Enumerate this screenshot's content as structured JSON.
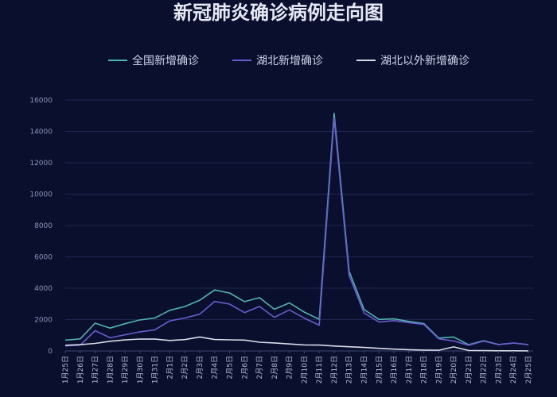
{
  "chart_data": {
    "type": "line",
    "title": "新冠肺炎确诊病例走向图",
    "xlabel": "",
    "ylabel": "",
    "ylim": [
      0,
      16000
    ],
    "yticks": [
      0,
      2000,
      4000,
      6000,
      8000,
      10000,
      12000,
      14000,
      16000
    ],
    "grid": true,
    "legend_position": "top",
    "categories": [
      "1月25日",
      "1月26日",
      "1月27日",
      "1月28日",
      "1月29日",
      "1月30日",
      "1月31日",
      "2月1日",
      "2月2日",
      "2月3日",
      "2月4日",
      "2月5日",
      "2月6日",
      "2月7日",
      "2月8日",
      "2月9日",
      "2月10日",
      "2月11日",
      "2月12日",
      "2月13日",
      "2月14日",
      "2月15日",
      "2月16日",
      "2月17日",
      "2月18日",
      "2月19日",
      "2月20日",
      "2月21日",
      "2月22日",
      "2月23日",
      "2月24日",
      "2月25日"
    ],
    "series": [
      {
        "name": "全国新增确诊",
        "color": "#4fb3b0",
        "values": [
          688,
          769,
          1771,
          1459,
          1737,
          1982,
          2102,
          2590,
          2829,
          3235,
          3887,
          3694,
          3143,
          3399,
          2656,
          3062,
          2478,
          2015,
          15152,
          5090,
          2641,
          2009,
          2048,
          1886,
          1749,
          820,
          889,
          397,
          648,
          409,
          508,
          406
        ]
      },
      {
        "name": "湖北新增确诊",
        "color": "#6a5ccf",
        "values": [
          323,
          371,
          1291,
          840,
          1032,
          1220,
          1347,
          1921,
          2103,
          2345,
          3156,
          2987,
          2447,
          2841,
          2147,
          2618,
          2097,
          1638,
          14840,
          4823,
          2420,
          1843,
          1933,
          1807,
          1693,
          775,
          631,
          366,
          630,
          398,
          499,
          401
        ]
      },
      {
        "name": "湖北以外新增确诊",
        "color": "#d8dbe8",
        "values": [
          365,
          398,
          480,
          619,
          705,
          762,
          755,
          669,
          726,
          890,
          731,
          707,
          696,
          558,
          509,
          444,
          381,
          377,
          312,
          267,
          221,
          166,
          115,
          79,
          56,
          45,
          258,
          31,
          18,
          11,
          9,
          5
        ]
      }
    ]
  }
}
